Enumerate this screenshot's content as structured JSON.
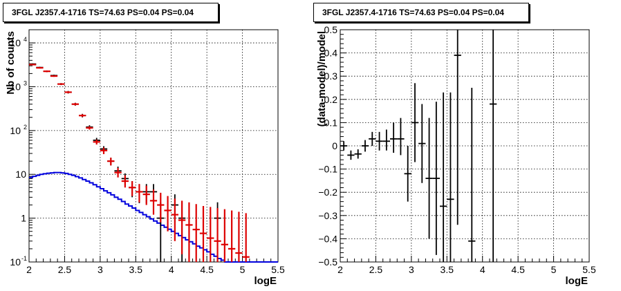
{
  "chart_data": [
    {
      "type": "histogram",
      "title": "3FGL J2357.4-1716 TS=74.63 PS=0.04 PS=0.04",
      "xlabel": "logE",
      "ylabel": "Nb of counts",
      "xlim": [
        2,
        5.5
      ],
      "ylim": [
        0.1,
        20000
      ],
      "yscale": "log",
      "grid": true,
      "xticks": [
        "2",
        "2.5",
        "3",
        "3.5",
        "4",
        "4.5",
        "5",
        "5.5"
      ],
      "yticks": [
        {
          "value": 0.1,
          "label": "10",
          "exp": "-1"
        },
        {
          "value": 1,
          "label": "1",
          "exp": ""
        },
        {
          "value": 10,
          "label": "10",
          "exp": ""
        },
        {
          "value": 100,
          "label": "10",
          "exp": "2"
        },
        {
          "value": 1000,
          "label": "10",
          "exp": "3"
        },
        {
          "value": 10000,
          "label": "10",
          "exp": "4"
        }
      ],
      "series": [
        {
          "kind": "step",
          "color": "#0000dd",
          "bin_edges": [
            2.0,
            2.05,
            2.1,
            2.15,
            2.2,
            2.25,
            2.3,
            2.35,
            2.4,
            2.45,
            2.5,
            2.55,
            2.6,
            2.65,
            2.7,
            2.75,
            2.8,
            2.85,
            2.9,
            2.95,
            3.0,
            3.05,
            3.1,
            3.15,
            3.2,
            3.25,
            3.3,
            3.35,
            3.4,
            3.45,
            3.5,
            3.55,
            3.6,
            3.65,
            3.7,
            3.75,
            3.8,
            3.85,
            3.9,
            3.95,
            4.0,
            4.05,
            4.1,
            4.15,
            4.2,
            4.25,
            4.3,
            4.35,
            4.4,
            4.45,
            4.5,
            4.55,
            4.6,
            4.65,
            4.7,
            4.75,
            4.8,
            4.85,
            4.9,
            4.95,
            5.0,
            5.05,
            5.1,
            5.15,
            5.2,
            5.25,
            5.3,
            5.35,
            5.4,
            5.45,
            5.5
          ],
          "values": [
            8.5,
            9.0,
            9.5,
            10.0,
            10.3,
            10.6,
            10.8,
            11.0,
            11.0,
            10.8,
            10.5,
            10.0,
            9.5,
            8.9,
            8.3,
            7.6,
            7.0,
            6.4,
            5.8,
            5.2,
            4.7,
            4.2,
            3.8,
            3.4,
            3.0,
            2.7,
            2.4,
            2.1,
            1.9,
            1.7,
            1.5,
            1.35,
            1.2,
            1.08,
            0.96,
            0.86,
            0.77,
            0.69,
            0.62,
            0.56,
            0.5,
            0.45,
            0.4,
            0.36,
            0.32,
            0.29,
            0.26,
            0.23,
            0.21,
            0.19,
            0.17,
            0.15,
            0.135,
            0.12,
            0.11,
            0.1,
            0.1,
            0.1,
            0.1,
            0.1,
            0.1,
            0.1,
            0.1,
            0.1,
            0.1,
            0.1,
            0.1,
            0.1,
            0.1,
            0.1
          ]
        },
        {
          "kind": "errorbar",
          "color": "#000000",
          "x": [
            2.05,
            2.15,
            2.25,
            2.35,
            2.45,
            2.55,
            2.65,
            2.75,
            2.85,
            2.95,
            3.05,
            3.15,
            3.25,
            3.35,
            3.45,
            3.55,
            3.65,
            3.75,
            3.85,
            4.05,
            4.15,
            4.65
          ],
          "xerr": 0.05,
          "y": [
            3300,
            2750,
            2250,
            1800,
            1150,
            750,
            400,
            220,
            120,
            60,
            38,
            20,
            12,
            8,
            5,
            4,
            4,
            4,
            1,
            2,
            1,
            1
          ],
          "ylo": [
            3200,
            2650,
            2150,
            1720,
            1090,
            700,
            370,
            200,
            108,
            52,
            32,
            16,
            9,
            5.5,
            3,
            2.2,
            2.2,
            2.2,
            0.1,
            0.8,
            0.1,
            0.1
          ],
          "yhi": [
            3400,
            2850,
            2350,
            1880,
            1210,
            800,
            430,
            240,
            132,
            68,
            44,
            24,
            15,
            10.5,
            7,
            6,
            6,
            6,
            2.3,
            3.5,
            2.3,
            2.3
          ]
        },
        {
          "kind": "errorbar",
          "color": "#dd0000",
          "x": [
            2.05,
            2.15,
            2.25,
            2.35,
            2.45,
            2.55,
            2.65,
            2.75,
            2.85,
            2.95,
            3.05,
            3.15,
            3.25,
            3.35,
            3.45,
            3.55,
            3.65,
            3.75,
            3.85,
            3.95,
            4.05,
            4.15,
            4.25,
            4.35,
            4.45,
            4.55,
            4.65,
            4.75,
            4.85,
            4.95,
            5.05
          ],
          "xerr": 0.05,
          "y": [
            3200,
            2700,
            2250,
            1750,
            1150,
            750,
            400,
            220,
            115,
            55,
            35,
            20,
            11,
            7,
            5,
            4,
            3.5,
            2.5,
            2,
            1.5,
            1.2,
            0.9,
            0.7,
            0.55,
            0.45,
            0.35,
            0.3,
            0.25,
            0.2,
            0.16,
            0.13
          ],
          "ylo": [
            3100,
            2600,
            2150,
            1680,
            1100,
            710,
            375,
            205,
            105,
            48,
            29,
            16,
            8.5,
            5,
            3.2,
            2.3,
            2,
            1.2,
            0.8,
            0.5,
            0.3,
            0.15,
            0.1,
            0.1,
            0.1,
            0.1,
            0.1,
            0.1,
            0.1,
            0.1,
            0.1
          ],
          "yhi": [
            3300,
            2800,
            2350,
            1820,
            1200,
            790,
            425,
            235,
            125,
            62,
            41,
            24,
            14,
            9.5,
            7,
            6,
            5.5,
            4.5,
            3.8,
            3.2,
            2.8,
            2.5,
            2.3,
            2.1,
            1.9,
            1.8,
            1.7,
            1.6,
            1.5,
            1.4,
            1.3
          ]
        }
      ]
    },
    {
      "type": "scatter",
      "title": "3FGL J2357.4-1716 TS=74.63 PS=0.04 PS=0.04",
      "xlabel": "logE",
      "ylabel": "(data-model)/model",
      "xlim": [
        2,
        5.5
      ],
      "ylim": [
        -0.5,
        0.5
      ],
      "grid": true,
      "xticks": [
        "2",
        "2.5",
        "3",
        "3.5",
        "4",
        "4.5",
        "5",
        "5.5"
      ],
      "yticks": [
        {
          "value": -0.5,
          "label": "−0.5"
        },
        {
          "value": -0.4,
          "label": "−0.4"
        },
        {
          "value": -0.3,
          "label": "−0.3"
        },
        {
          "value": -0.2,
          "label": "−0.2"
        },
        {
          "value": -0.1,
          "label": "−0.1"
        },
        {
          "value": 0,
          "label": "0"
        },
        {
          "value": 0.1,
          "label": "0.1"
        },
        {
          "value": 0.2,
          "label": "0.2"
        },
        {
          "value": 0.3,
          "label": "0.3"
        },
        {
          "value": 0.4,
          "label": "0.4"
        },
        {
          "value": 0.5,
          "label": "0.5"
        }
      ],
      "series": [
        {
          "kind": "errorbar",
          "color": "#000000",
          "x": [
            2.05,
            2.15,
            2.25,
            2.35,
            2.45,
            2.55,
            2.65,
            2.75,
            2.85,
            2.95,
            3.05,
            3.15,
            3.25,
            3.35,
            3.45,
            3.55,
            3.65,
            3.85,
            4.15
          ],
          "xerr": 0.05,
          "y": [
            0.0,
            -0.04,
            -0.035,
            0.0,
            0.03,
            0.02,
            0.02,
            0.03,
            0.03,
            -0.12,
            0.1,
            0.01,
            -0.14,
            -0.14,
            -0.26,
            -0.23,
            0.39,
            -0.41,
            0.18
          ],
          "ylo": [
            -0.02,
            -0.06,
            -0.055,
            -0.025,
            0.0,
            -0.02,
            -0.02,
            -0.03,
            -0.04,
            -0.24,
            -0.07,
            -0.16,
            -0.4,
            -0.47,
            -0.5,
            -0.5,
            -0.34,
            -0.5,
            -0.5
          ],
          "yhi": [
            0.02,
            -0.02,
            -0.015,
            0.025,
            0.06,
            0.06,
            0.07,
            0.1,
            0.12,
            0.0,
            0.27,
            0.18,
            0.12,
            0.19,
            0.23,
            0.23,
            0.5,
            0.25,
            0.5
          ]
        }
      ]
    }
  ]
}
